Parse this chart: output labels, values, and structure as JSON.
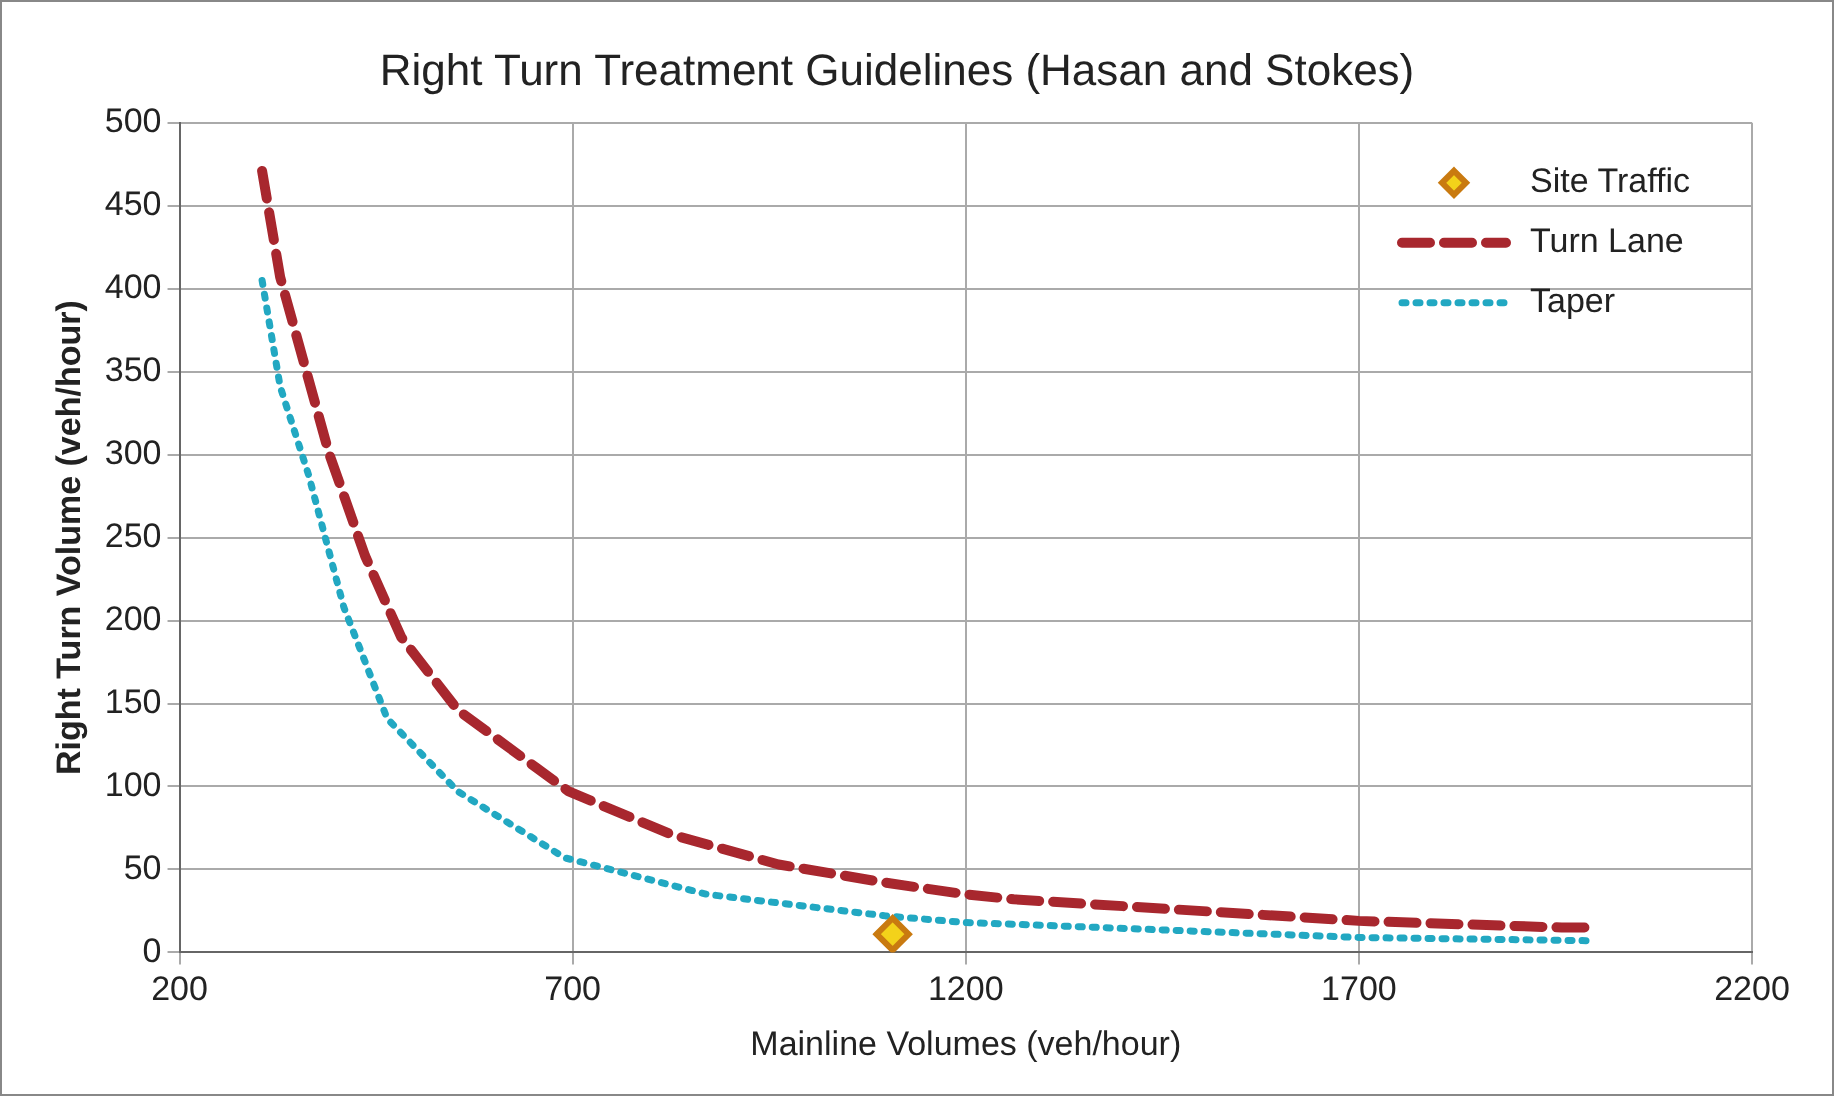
{
  "chart_data": {
    "type": "line",
    "title": "Right Turn Treatment Guidelines (Hasan and Stokes)",
    "xlabel": "Mainline Volumes (veh/hour)",
    "ylabel": "Right Turn Volume (veh/hour)",
    "xlim": [
      200,
      2200
    ],
    "xticks": [
      200,
      700,
      1200,
      1700,
      2200
    ],
    "ylim": [
      0,
      500
    ],
    "yticks": [
      0,
      50,
      100,
      150,
      200,
      250,
      300,
      350,
      400,
      450,
      500
    ],
    "grid": true,
    "legend": "top right",
    "series": [
      {
        "name": "Site Traffic",
        "type": "scatter",
        "marker": "diamond",
        "color": "#c97a10",
        "x": [
          1107
        ],
        "values": [
          11
        ]
      },
      {
        "name": "Turn Lane",
        "type": "line",
        "line_style": "dashed",
        "marker": "none",
        "color": "#a8272e",
        "x": [
          305,
          328,
          390,
          436,
          482,
          554,
          695,
          826,
          962,
          1098,
          1200,
          1261,
          1700,
          1958,
          1990
        ],
        "values": [
          471,
          407,
          301,
          239,
          190,
          146,
          97,
          71,
          53,
          42,
          35,
          32,
          19,
          15,
          15
        ]
      },
      {
        "name": "Taper",
        "type": "line",
        "line_style": "dotted",
        "marker": "none",
        "color": "#22a8c2",
        "x": [
          305,
          328,
          364,
          409,
          464,
          554,
          690,
          871,
          1098,
          1200,
          1261,
          1700,
          2000
        ],
        "values": [
          405,
          341,
          288,
          208,
          141,
          97,
          57,
          35,
          22,
          18,
          17,
          9,
          7
        ]
      }
    ]
  }
}
